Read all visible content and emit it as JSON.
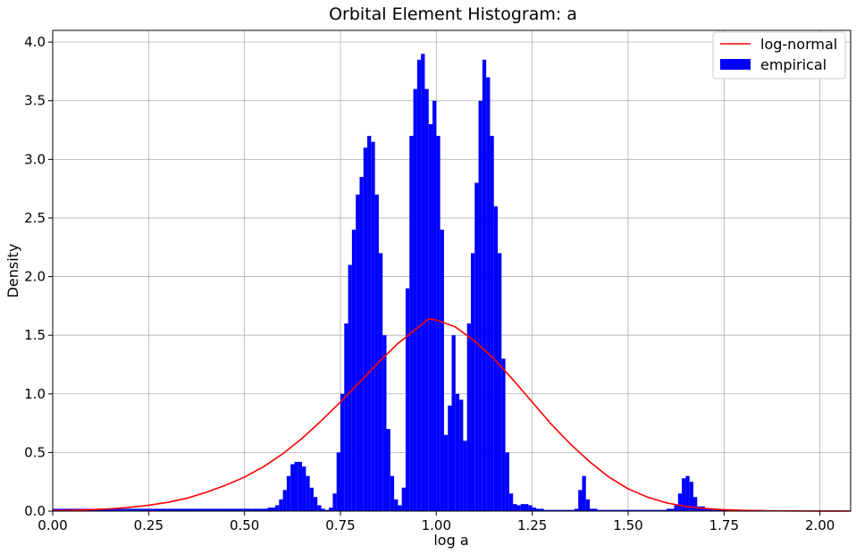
{
  "chart_data": {
    "type": "bar",
    "title": "Orbital Element Histogram: a",
    "xlabel": "log a",
    "ylabel": "Density",
    "xlim": [
      0.0,
      2.08
    ],
    "ylim": [
      0.0,
      4.1
    ],
    "xticks": [
      0.0,
      0.25,
      0.5,
      0.75,
      1.0,
      1.25,
      1.5,
      1.75,
      2.0
    ],
    "xtick_labels": [
      "0.00",
      "0.25",
      "0.50",
      "0.75",
      "1.00",
      "1.25",
      "1.50",
      "1.75",
      "2.00"
    ],
    "yticks": [
      0.0,
      0.5,
      1.0,
      1.5,
      2.0,
      2.5,
      3.0,
      3.5,
      4.0
    ],
    "ytick_labels": [
      "0.0",
      "0.5",
      "1.0",
      "1.5",
      "2.0",
      "2.5",
      "3.0",
      "3.5",
      "4.0"
    ],
    "grid": true,
    "legend_position": "top-right",
    "series": [
      {
        "name": "empirical",
        "kind": "histogram",
        "color": "#0000ff",
        "x": [
          0.0,
          0.02,
          0.04,
          0.06,
          0.08,
          0.1,
          0.12,
          0.14,
          0.16,
          0.18,
          0.2,
          0.22,
          0.24,
          0.26,
          0.28,
          0.3,
          0.32,
          0.34,
          0.36,
          0.38,
          0.4,
          0.42,
          0.44,
          0.46,
          0.48,
          0.5,
          0.52,
          0.54,
          0.56,
          0.58,
          0.59,
          0.6,
          0.61,
          0.62,
          0.63,
          0.64,
          0.65,
          0.66,
          0.67,
          0.68,
          0.69,
          0.7,
          0.71,
          0.72,
          0.73,
          0.74,
          0.75,
          0.76,
          0.77,
          0.78,
          0.79,
          0.8,
          0.81,
          0.82,
          0.83,
          0.84,
          0.85,
          0.86,
          0.87,
          0.88,
          0.89,
          0.9,
          0.91,
          0.92,
          0.93,
          0.94,
          0.95,
          0.96,
          0.97,
          0.98,
          0.99,
          1.0,
          1.01,
          1.02,
          1.03,
          1.04,
          1.05,
          1.06,
          1.07,
          1.08,
          1.09,
          1.1,
          1.11,
          1.12,
          1.13,
          1.14,
          1.15,
          1.16,
          1.17,
          1.18,
          1.19,
          1.2,
          1.21,
          1.22,
          1.23,
          1.24,
          1.25,
          1.26,
          1.27,
          1.28,
          1.3,
          1.32,
          1.34,
          1.36,
          1.37,
          1.38,
          1.39,
          1.4,
          1.42,
          1.44,
          1.46,
          1.48,
          1.5,
          1.52,
          1.54,
          1.56,
          1.58,
          1.6,
          1.62,
          1.63,
          1.64,
          1.65,
          1.66,
          1.67,
          1.68,
          1.7,
          1.72,
          1.74,
          1.76,
          1.78,
          1.8,
          1.85,
          1.9,
          1.95,
          2.0,
          2.05
        ],
        "values": [
          0.02,
          0.02,
          0.02,
          0.02,
          0.02,
          0.02,
          0.02,
          0.02,
          0.02,
          0.02,
          0.02,
          0.02,
          0.02,
          0.02,
          0.02,
          0.02,
          0.02,
          0.02,
          0.02,
          0.02,
          0.02,
          0.02,
          0.02,
          0.02,
          0.02,
          0.02,
          0.02,
          0.02,
          0.03,
          0.05,
          0.1,
          0.18,
          0.3,
          0.4,
          0.42,
          0.42,
          0.38,
          0.3,
          0.2,
          0.12,
          0.05,
          0.02,
          0.01,
          0.03,
          0.15,
          0.5,
          1.0,
          1.6,
          2.1,
          2.4,
          2.7,
          2.85,
          3.1,
          3.2,
          3.15,
          2.7,
          2.2,
          1.5,
          0.7,
          0.3,
          0.1,
          0.05,
          0.2,
          1.9,
          3.2,
          3.6,
          3.85,
          3.9,
          3.6,
          3.3,
          3.5,
          3.2,
          2.4,
          0.65,
          0.9,
          1.5,
          1.0,
          0.95,
          0.6,
          1.6,
          2.2,
          2.8,
          3.5,
          3.85,
          3.7,
          3.2,
          2.6,
          2.2,
          1.3,
          0.5,
          0.15,
          0.06,
          0.05,
          0.06,
          0.06,
          0.05,
          0.03,
          0.02,
          0.02,
          0.01,
          0.01,
          0.01,
          0.01,
          0.02,
          0.18,
          0.3,
          0.1,
          0.02,
          0.01,
          0.01,
          0.01,
          0.01,
          0.01,
          0.01,
          0.01,
          0.01,
          0.01,
          0.02,
          0.05,
          0.15,
          0.28,
          0.3,
          0.25,
          0.12,
          0.04,
          0.02,
          0.01,
          0.01,
          0.01,
          0.01,
          0.01,
          0.005,
          0.005,
          0.005,
          0.005,
          0.005
        ]
      },
      {
        "name": "log-normal",
        "kind": "line",
        "color": "#ff0000",
        "x": [
          0.0,
          0.05,
          0.1,
          0.15,
          0.2,
          0.25,
          0.3,
          0.35,
          0.4,
          0.45,
          0.5,
          0.55,
          0.6,
          0.65,
          0.7,
          0.75,
          0.8,
          0.85,
          0.9,
          0.95,
          0.98,
          1.0,
          1.05,
          1.1,
          1.15,
          1.2,
          1.25,
          1.3,
          1.35,
          1.4,
          1.45,
          1.5,
          1.55,
          1.6,
          1.65,
          1.7,
          1.75,
          1.8,
          1.85,
          1.9,
          1.95,
          2.0,
          2.05,
          2.08
        ],
        "values": [
          0.004,
          0.007,
          0.012,
          0.02,
          0.032,
          0.05,
          0.075,
          0.11,
          0.16,
          0.22,
          0.29,
          0.38,
          0.49,
          0.62,
          0.77,
          0.93,
          1.1,
          1.27,
          1.43,
          1.56,
          1.64,
          1.63,
          1.57,
          1.45,
          1.3,
          1.12,
          0.93,
          0.74,
          0.57,
          0.42,
          0.29,
          0.19,
          0.12,
          0.07,
          0.04,
          0.022,
          0.012,
          0.006,
          0.003,
          0.002,
          0.001,
          0.0005,
          0.0002,
          0.0001
        ]
      }
    ]
  }
}
